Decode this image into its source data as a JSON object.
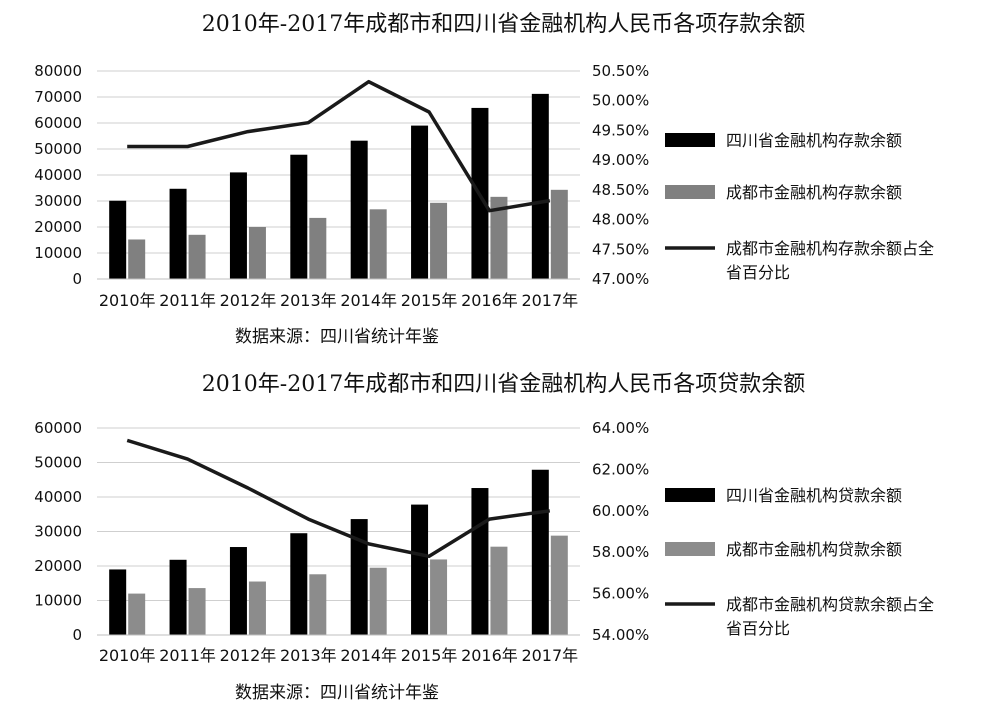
{
  "chart_data": [
    {
      "type": "bar",
      "title": "2010年-2017年成都市和四川省金融机构人民币各项存款余额",
      "categories": [
        "2010年",
        "2011年",
        "2012年",
        "2013年",
        "2014年",
        "2015年",
        "2016年",
        "2017年"
      ],
      "y_left": {
        "ylim": [
          0,
          80000
        ],
        "ticks": [
          "0",
          "10000",
          "20000",
          "30000",
          "40000",
          "50000",
          "60000",
          "70000",
          "80000"
        ]
      },
      "y_right": {
        "ylim": [
          47.0,
          50.5
        ],
        "ticks": [
          "47.00%",
          "47.50%",
          "48.00%",
          "48.50%",
          "49.00%",
          "49.50%",
          "50.00%",
          "50.50%"
        ]
      },
      "series": [
        {
          "name": "四川省金融机构存款余额",
          "kind": "bar",
          "axis": "left",
          "color": "#000000",
          "values": [
            30100,
            34700,
            41000,
            47800,
            53200,
            59000,
            65800,
            71200
          ]
        },
        {
          "name": "成都市金融机构存款余额",
          "kind": "bar",
          "axis": "left",
          "color": "#808080",
          "values": [
            15200,
            17000,
            20000,
            23500,
            26800,
            29300,
            31600,
            34300
          ]
        },
        {
          "name_lines": [
            "成都市金融机构存款余额占全",
            "省百分比"
          ],
          "kind": "line",
          "axis": "right",
          "color": "#1a1a1a",
          "values": [
            49.23,
            49.23,
            49.48,
            49.63,
            50.32,
            49.81,
            48.15,
            48.32
          ]
        }
      ],
      "source": "数据来源：四川省统计年鉴",
      "grid": true,
      "legend": "right"
    },
    {
      "type": "bar",
      "title": "2010年-2017年成都市和四川省金融机构人民币各项贷款余额",
      "categories": [
        "2010年",
        "2011年",
        "2012年",
        "2013年",
        "2014年",
        "2015年",
        "2016年",
        "2017年"
      ],
      "y_left": {
        "ylim": [
          0,
          60000
        ],
        "ticks": [
          "0",
          "10000",
          "20000",
          "30000",
          "40000",
          "50000",
          "60000"
        ]
      },
      "y_right": {
        "ylim": [
          54.0,
          64.0
        ],
        "ticks": [
          "54.00%",
          "56.00%",
          "58.00%",
          "60.00%",
          "62.00%",
          "64.00%"
        ]
      },
      "series": [
        {
          "name": "四川省金融机构贷款余额",
          "kind": "bar",
          "axis": "left",
          "color": "#000000",
          "values": [
            19000,
            21800,
            25500,
            29500,
            33600,
            37800,
            42600,
            47900
          ]
        },
        {
          "name": "成都市金融机构贷款余额",
          "kind": "bar",
          "axis": "left",
          "color": "#8c8c8c",
          "values": [
            12000,
            13600,
            15500,
            17600,
            19500,
            21900,
            25600,
            28800
          ]
        },
        {
          "name_lines": [
            "成都市金融机构贷款余额占全",
            "省百分比"
          ],
          "kind": "line",
          "axis": "right",
          "color": "#1a1a1a",
          "values": [
            63.4,
            62.5,
            61.1,
            59.6,
            58.4,
            57.8,
            59.6,
            60.0
          ]
        }
      ],
      "source": "数据来源：四川省统计年鉴",
      "grid": true,
      "legend": "right"
    }
  ]
}
